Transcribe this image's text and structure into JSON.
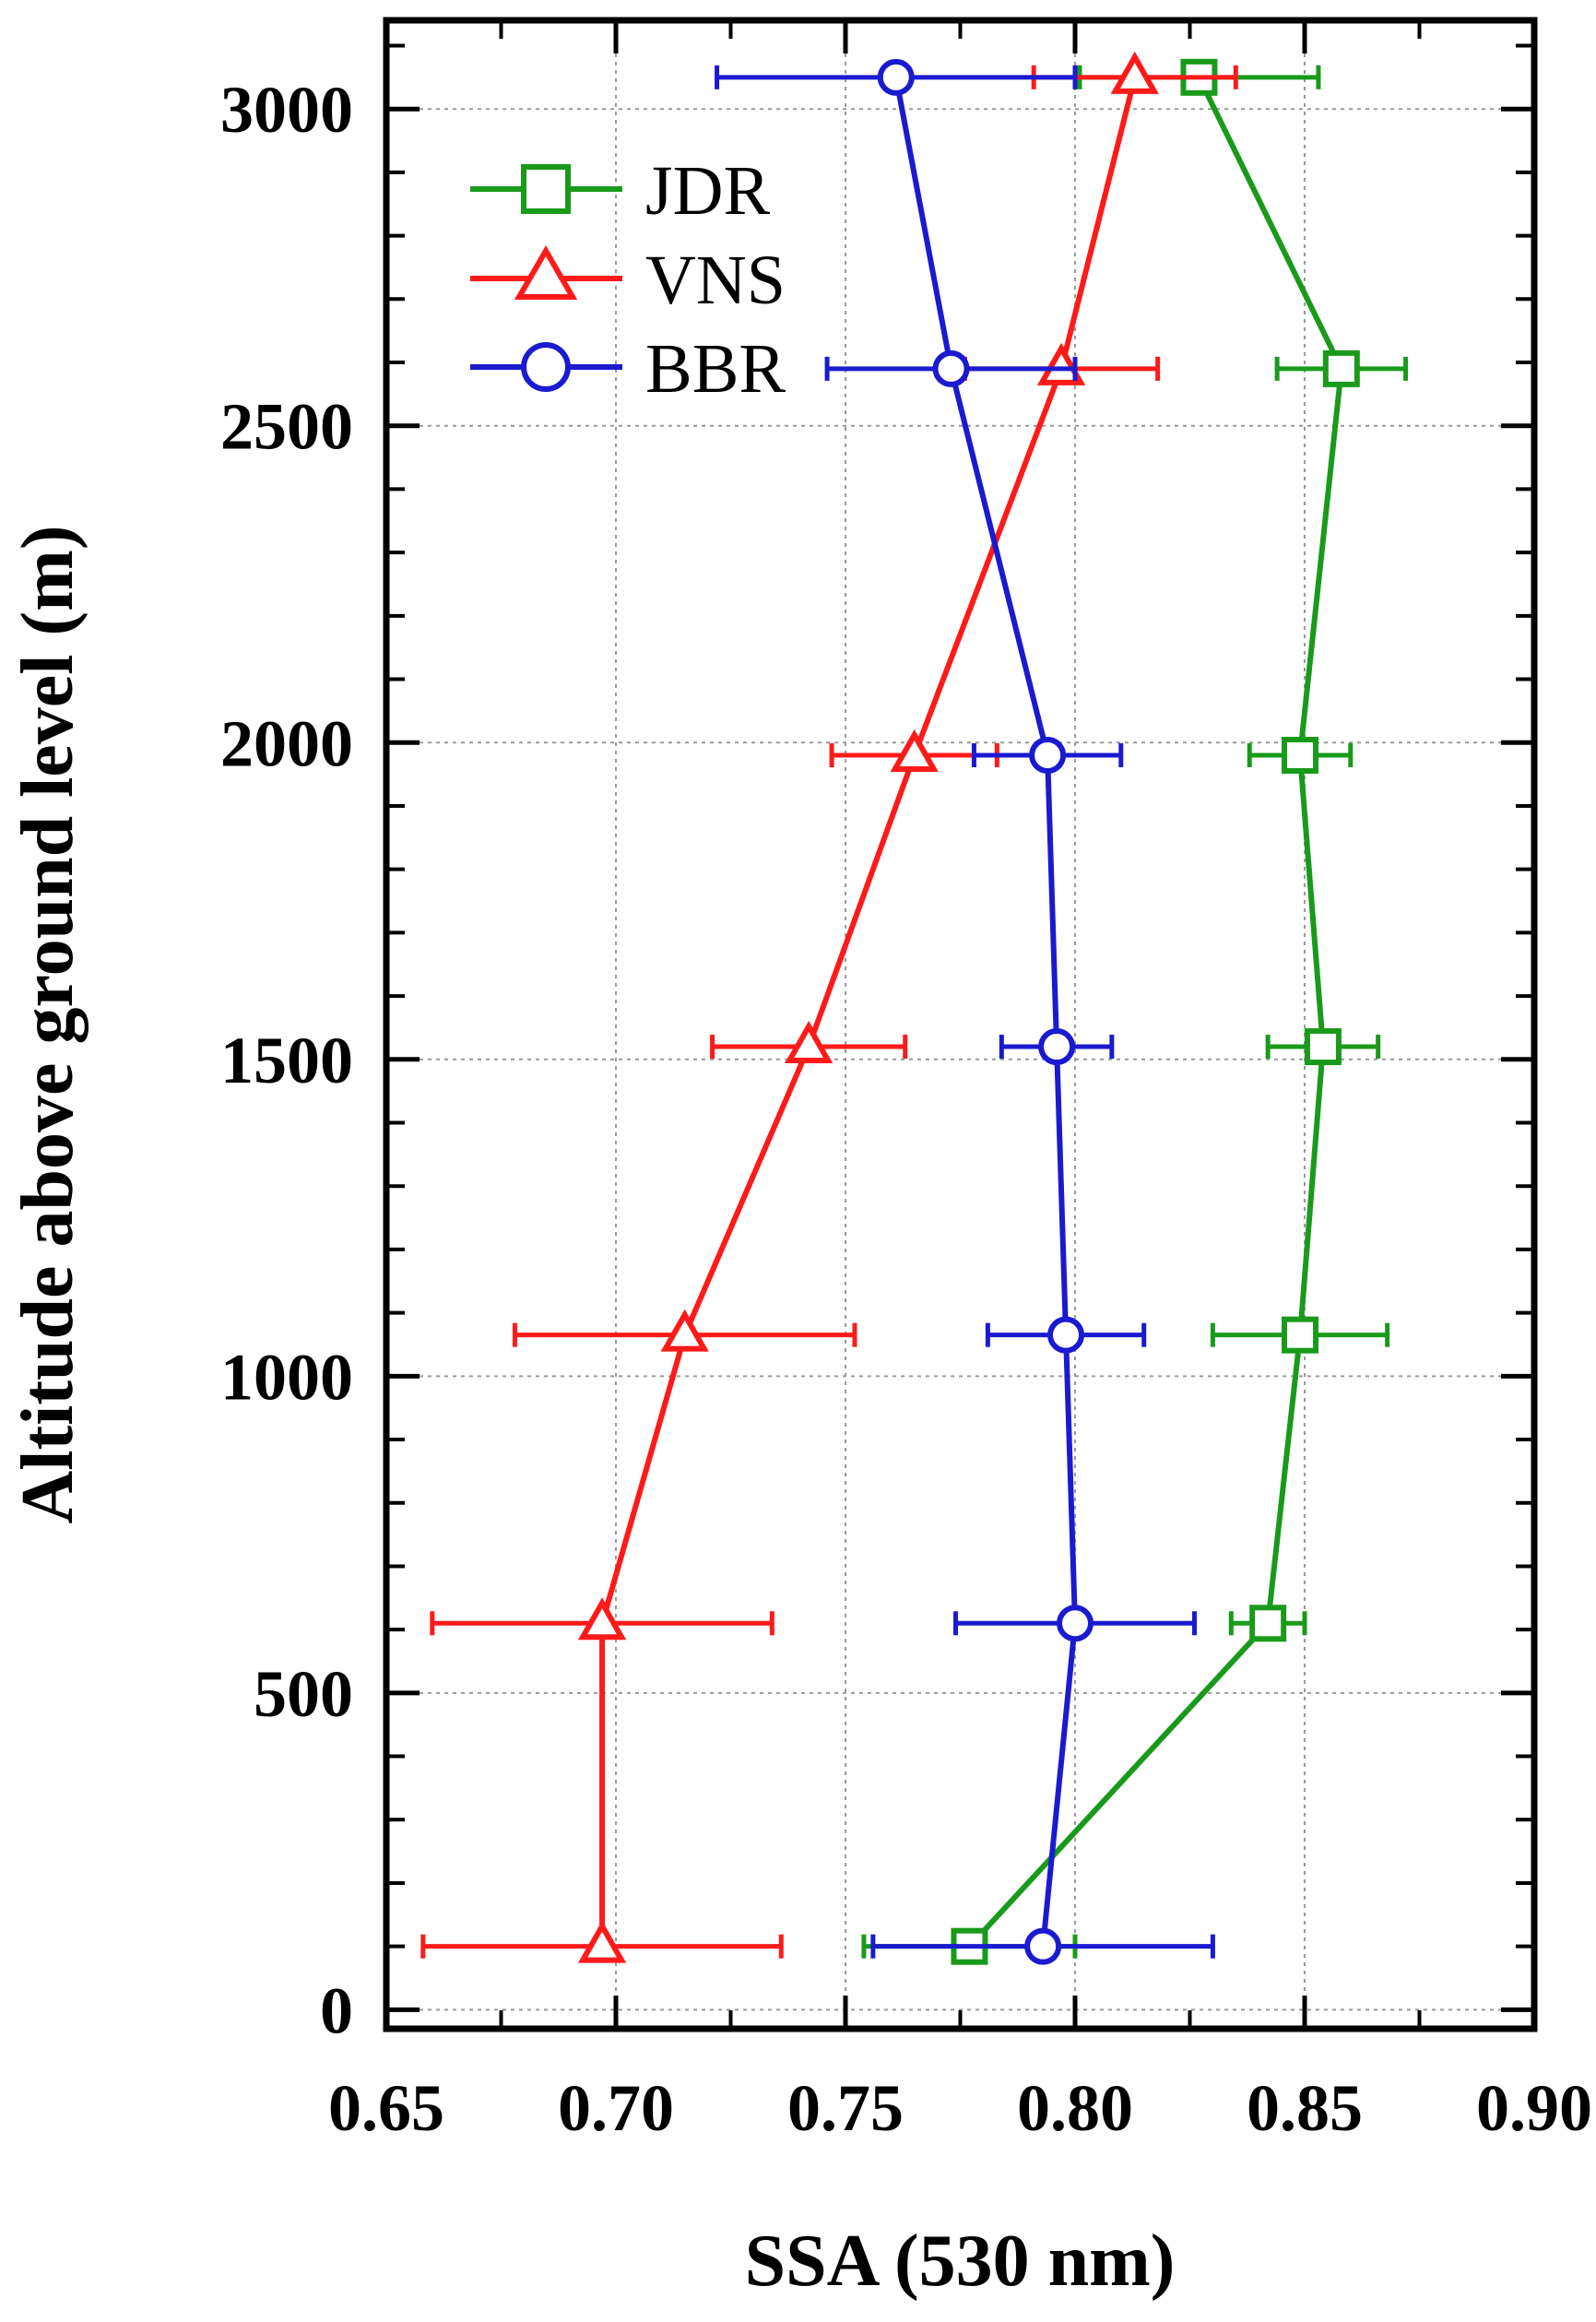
{
  "chart_data": {
    "type": "line",
    "xlabel": "SSA (530 nm)",
    "ylabel": "Altitude above ground level (m)",
    "xlim": [
      0.65,
      0.9
    ],
    "ylim": [
      -30,
      3140
    ],
    "xticks": [
      0.65,
      0.7,
      0.75,
      0.8,
      0.85,
      0.9
    ],
    "xtick_labels": [
      "0.65",
      "0.70",
      "0.75",
      "0.80",
      "0.85",
      "0.90"
    ],
    "yticks": [
      0,
      500,
      1000,
      1500,
      2000,
      2500,
      3000
    ],
    "ytick_labels": [
      "0",
      "500",
      "1000",
      "1500",
      "2000",
      "2500",
      "3000"
    ],
    "grid": true,
    "legend_position": "top-left",
    "error_bars": "horizontal",
    "series": [
      {
        "name": "JDR",
        "color": "#1a9a1a",
        "marker": "square",
        "points": [
          {
            "x": 0.777,
            "y": 100,
            "xerr": 0.023
          },
          {
            "x": 0.842,
            "y": 610,
            "xerr": 0.008
          },
          {
            "x": 0.849,
            "y": 1065,
            "xerr": 0.019
          },
          {
            "x": 0.854,
            "y": 1520,
            "xerr": 0.012
          },
          {
            "x": 0.849,
            "y": 1980,
            "xerr": 0.011
          },
          {
            "x": 0.858,
            "y": 2590,
            "xerr": 0.014
          },
          {
            "x": 0.827,
            "y": 3050,
            "xerr": 0.026
          }
        ]
      },
      {
        "name": "VNS",
        "color": "#ff1a1a",
        "marker": "triangle",
        "points": [
          {
            "x": 0.697,
            "y": 100,
            "xerr": 0.039
          },
          {
            "x": 0.697,
            "y": 610,
            "xerr": 0.037
          },
          {
            "x": 0.715,
            "y": 1065,
            "xerr": 0.037
          },
          {
            "x": 0.742,
            "y": 1520,
            "xerr": 0.021
          },
          {
            "x": 0.765,
            "y": 1980,
            "xerr": 0.018
          },
          {
            "x": 0.797,
            "y": 2590,
            "xerr": 0.021
          },
          {
            "x": 0.813,
            "y": 3050,
            "xerr": 0.022
          }
        ]
      },
      {
        "name": "BBR",
        "color": "#1a1ad1",
        "marker": "circle",
        "points": [
          {
            "x": 0.793,
            "y": 100,
            "xerr": 0.037
          },
          {
            "x": 0.8,
            "y": 610,
            "xerr": 0.026
          },
          {
            "x": 0.798,
            "y": 1065,
            "xerr": 0.017
          },
          {
            "x": 0.796,
            "y": 1520,
            "xerr": 0.012
          },
          {
            "x": 0.794,
            "y": 1980,
            "xerr": 0.016
          },
          {
            "x": 0.773,
            "y": 2590,
            "xerr": 0.027
          },
          {
            "x": 0.761,
            "y": 3050,
            "xerr": 0.039
          }
        ]
      }
    ]
  }
}
